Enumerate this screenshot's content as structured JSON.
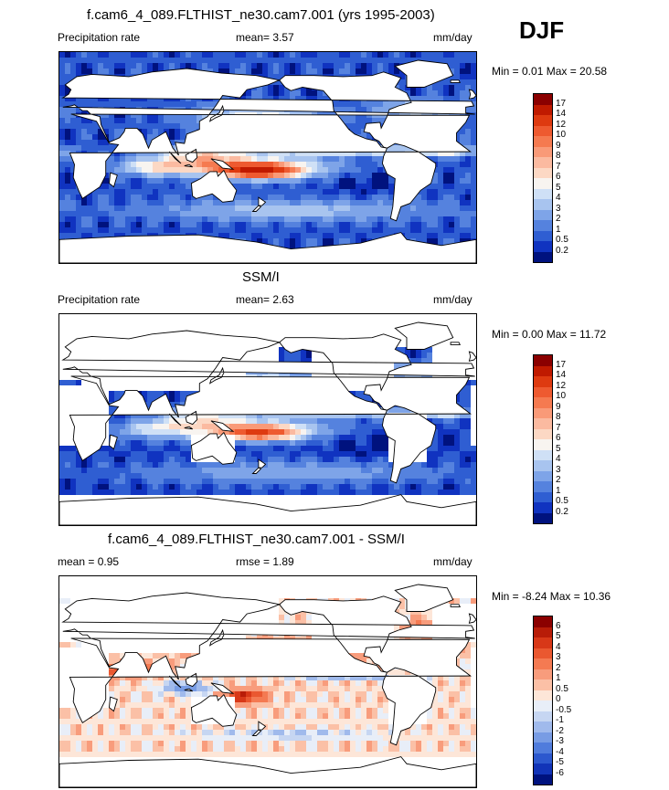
{
  "season": "DJF",
  "panels": [
    {
      "id": "model",
      "title": "f.cam6_4_089.FLTHIST_ne30.cam7.001 (yrs 1995-2003)",
      "left_label": "Precipitation rate",
      "center_label": "mean=   3.57",
      "units": "mm/day",
      "minmax": "Min =   0.01 Max =  20.58",
      "palette": "precip",
      "scheme": "model"
    },
    {
      "id": "obs",
      "title": "SSM/I",
      "left_label": "Precipitation rate",
      "center_label": "mean=   2.63",
      "units": "mm/day",
      "minmax": "Min =   0.00 Max =  11.72",
      "palette": "precip",
      "scheme": "obs"
    },
    {
      "id": "diff",
      "title": "f.cam6_4_089.FLTHIST_ne30.cam7.001 - SSM/I",
      "left_label": "mean =   0.95",
      "center_label": "rmse =   1.89",
      "units": "mm/day",
      "minmax": "Min =  -8.24 Max =  10.36",
      "palette": "diff",
      "scheme": "diff"
    }
  ],
  "colorbars": {
    "precip": {
      "labels": [
        "17",
        "14",
        "12",
        "10",
        "9",
        "8",
        "7",
        "6",
        "5",
        "4",
        "3",
        "2",
        "1",
        "0.5",
        "0.2"
      ],
      "colors": [
        "#8b0000",
        "#c01a00",
        "#de3a10",
        "#ee5a30",
        "#f57a50",
        "#f99a78",
        "#fbbaa0",
        "#fcd8c4",
        "#f8f4f0",
        "#cfe0f6",
        "#a8c4ef",
        "#7ea4e8",
        "#5582de",
        "#2f5ed2",
        "#1033c0",
        "#00127e"
      ]
    },
    "diff": {
      "labels": [
        "6",
        "5",
        "4",
        "3",
        "2",
        "1",
        "0.5",
        "0",
        "-0.5",
        "-1",
        "-2",
        "-3",
        "-4",
        "-5",
        "-6"
      ],
      "colors": [
        "#8b0000",
        "#b81c08",
        "#d83818",
        "#ea5830",
        "#f47a52",
        "#f89c7c",
        "#fbc0a6",
        "#fde6d8",
        "#e8eef8",
        "#c6d6f2",
        "#a0baec",
        "#789ce4",
        "#507cdc",
        "#2c58ce",
        "#1234b8",
        "#00127e"
      ]
    }
  }
}
